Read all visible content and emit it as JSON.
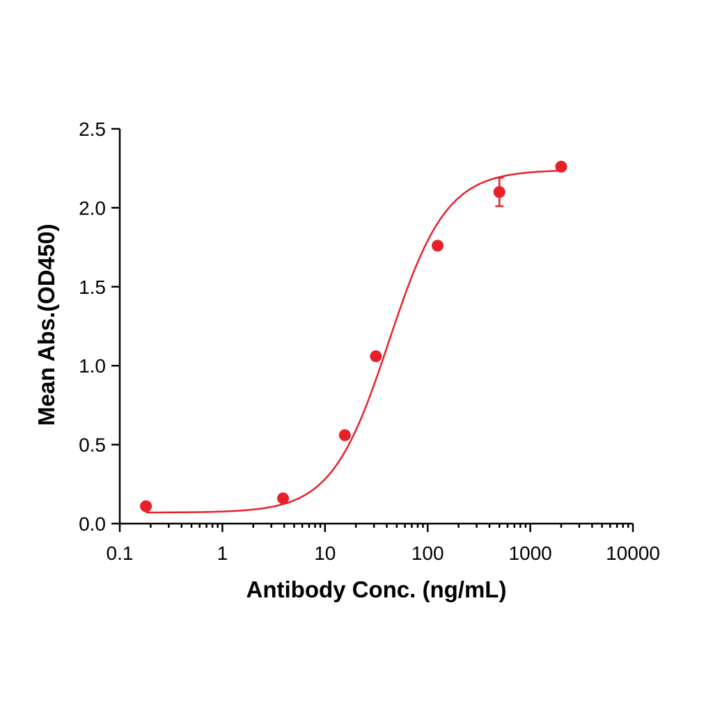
{
  "chart_data": {
    "type": "scatter",
    "title": "",
    "xlabel": "Antibody Conc. (ng/mL)",
    "ylabel": "Mean Abs.(OD450)",
    "x_scale": "log",
    "xlim": [
      0.1,
      10000
    ],
    "ylim": [
      0,
      2.5
    ],
    "x_ticks": [
      0.1,
      1,
      10,
      100,
      1000,
      10000
    ],
    "x_tick_labels": [
      "0.1",
      "1",
      "10",
      "100",
      "1000",
      "10000"
    ],
    "y_ticks": [
      0,
      0.5,
      1,
      1.5,
      2,
      2.5
    ],
    "y_tick_labels": [
      "0.0",
      "0.5",
      "1.0",
      "1.5",
      "2.0",
      "2.5"
    ],
    "grid": false,
    "color": "#e8202a",
    "series": [
      {
        "points": [
          {
            "x": 0.18,
            "y": 0.11
          },
          {
            "x": 3.9,
            "y": 0.16
          },
          {
            "x": 15.6,
            "y": 0.56
          },
          {
            "x": 31.3,
            "y": 1.06
          },
          {
            "x": 125,
            "y": 1.76
          },
          {
            "x": 500,
            "y": 2.1,
            "err": 0.09
          },
          {
            "x": 2000,
            "y": 2.26
          }
        ]
      }
    ],
    "fit_curve": {
      "model": "4PL",
      "bottom": 0.07,
      "top": 2.24,
      "ec50": 42,
      "hill": 1.55,
      "x_range": [
        0.18,
        2000
      ]
    }
  }
}
